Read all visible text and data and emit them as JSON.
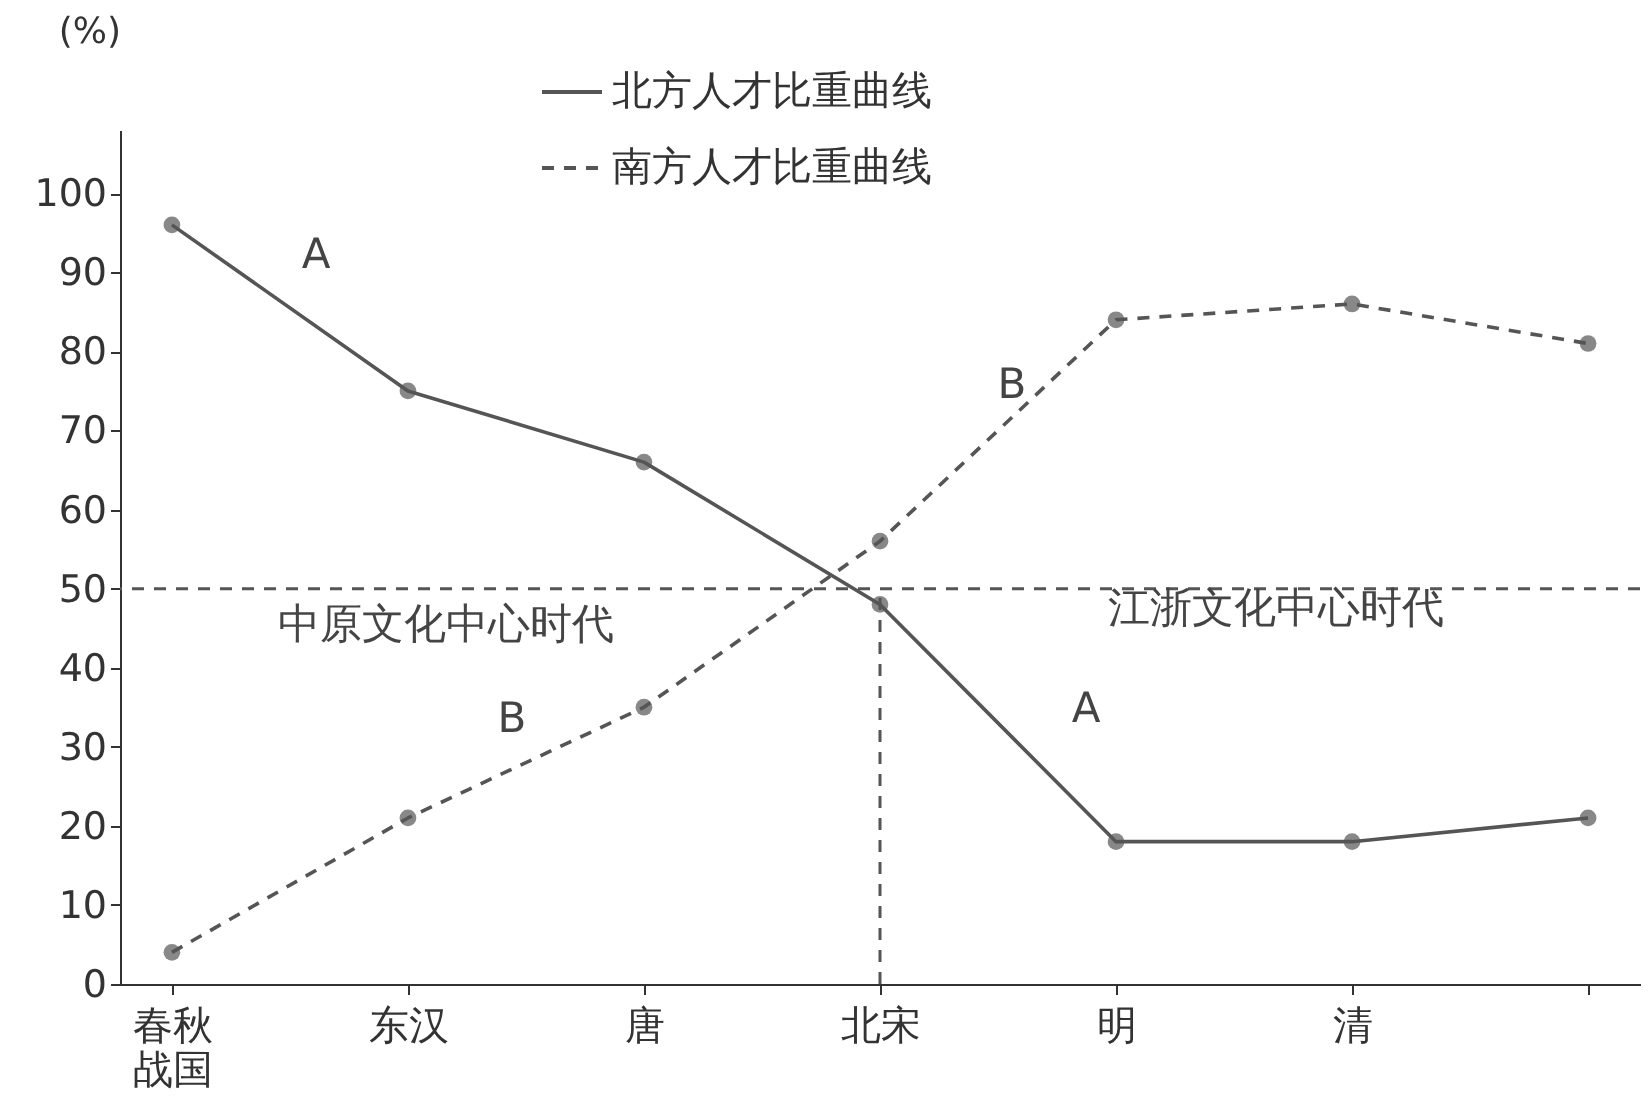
{
  "chart_data": {
    "type": "line",
    "ylabel": "(%)",
    "categories": [
      "春秋战国",
      "东汉",
      "唐",
      "北宋",
      "明",
      "清",
      null
    ],
    "series": [
      {
        "name": "北方人才比重曲线",
        "color": "#555555",
        "line_style": "solid",
        "values": [
          96,
          75,
          66,
          48,
          18,
          18,
          21
        ]
      },
      {
        "name": "南方人才比重曲线",
        "color": "#555555",
        "line_style": "dashed",
        "values": [
          4,
          21,
          35,
          56,
          84,
          86,
          81
        ]
      }
    ],
    "ylim": [
      0,
      108
    ],
    "yticks": [
      0,
      10,
      20,
      30,
      40,
      50,
      60,
      70,
      80,
      90,
      100
    ],
    "grid": false,
    "marker": "circle",
    "legend": "top",
    "ref_lines": [
      {
        "axis": "y",
        "value": 50,
        "line_style": "dashed"
      },
      {
        "axis": "x",
        "value": "北宋",
        "line_style": "dashed"
      }
    ],
    "annotations": [
      "A",
      "B",
      "B",
      "A",
      "中原文化中心时代",
      "江浙文化中心时代"
    ]
  }
}
